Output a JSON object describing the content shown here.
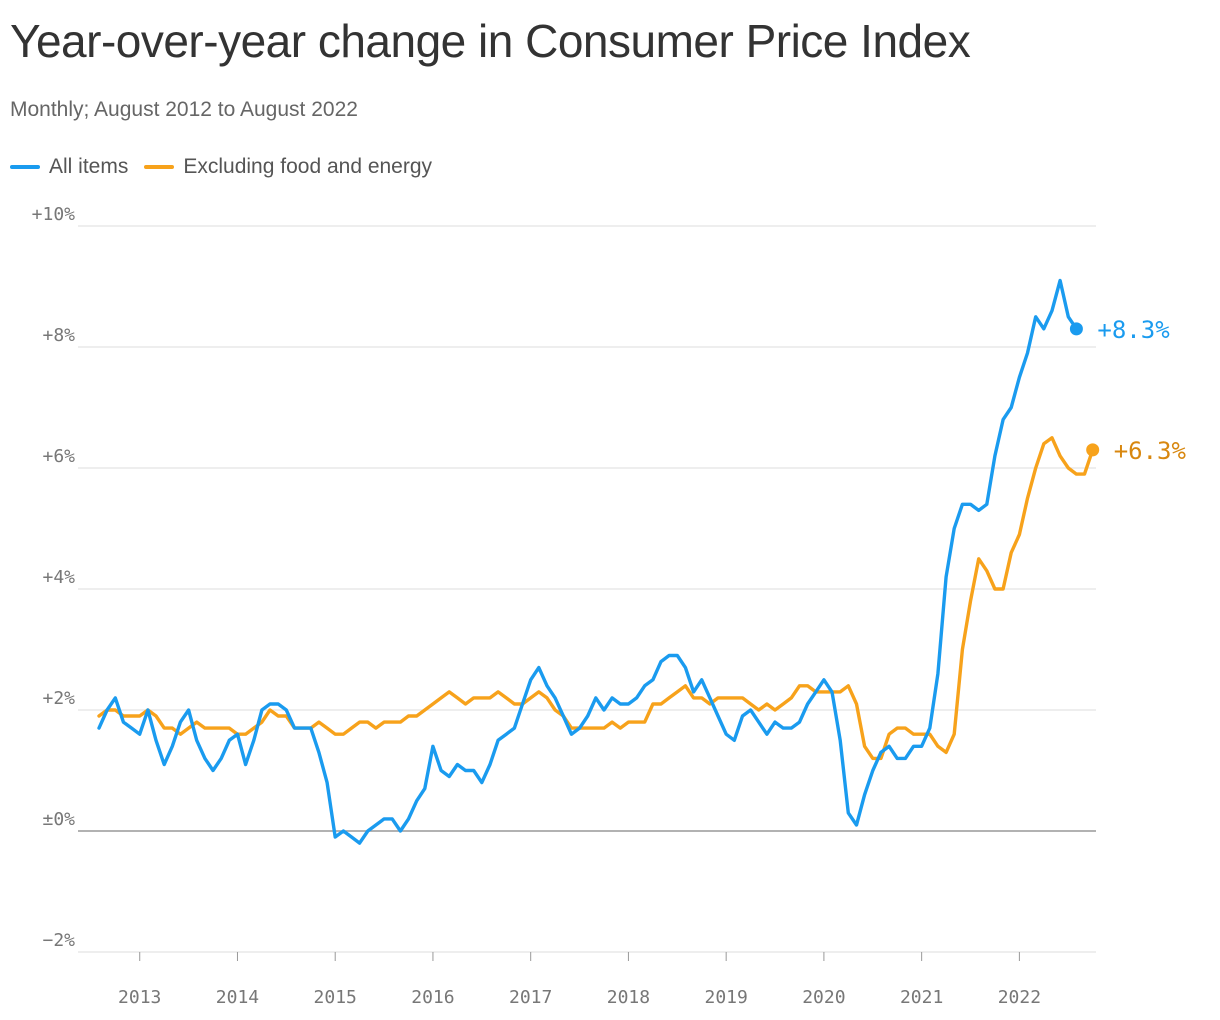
{
  "title": "Year-over-year change in Consumer Price Index",
  "subtitle": "Monthly; August 2012 to August 2022",
  "legend": [
    {
      "label": "All items",
      "color": "#1a9bef"
    },
    {
      "label": "Excluding food and energy",
      "color": "#f7a21b"
    }
  ],
  "chart_data": {
    "type": "line",
    "x_start": "2012-08",
    "x_frequency": "monthly",
    "ylim": [
      -2,
      10
    ],
    "y_ticks": [
      {
        "value": 10,
        "label": "+10%"
      },
      {
        "value": 8,
        "label": "+8%"
      },
      {
        "value": 6,
        "label": "+6%"
      },
      {
        "value": 4,
        "label": "+4%"
      },
      {
        "value": 2,
        "label": "+2%"
      },
      {
        "value": 0,
        "label": "±0%"
      },
      {
        "value": -2,
        "label": "−2%"
      }
    ],
    "x_ticks": [
      {
        "label": "2013",
        "date": "2013-01"
      },
      {
        "label": "2014",
        "date": "2014-01"
      },
      {
        "label": "2015",
        "date": "2015-01"
      },
      {
        "label": "2016",
        "date": "2016-01"
      },
      {
        "label": "2017",
        "date": "2017-01"
      },
      {
        "label": "2018",
        "date": "2018-01"
      },
      {
        "label": "2019",
        "date": "2019-01"
      },
      {
        "label": "2020",
        "date": "2020-01"
      },
      {
        "label": "2021",
        "date": "2021-01"
      },
      {
        "label": "2022",
        "date": "2022-01"
      }
    ],
    "grid": true,
    "series": [
      {
        "name": "All items",
        "color": "#1a9bef",
        "end_label": "+8.3%",
        "values": [
          1.7,
          2.0,
          2.2,
          1.8,
          1.7,
          1.6,
          2.0,
          1.5,
          1.1,
          1.4,
          1.8,
          2.0,
          1.5,
          1.2,
          1.0,
          1.2,
          1.5,
          1.6,
          1.1,
          1.5,
          2.0,
          2.1,
          2.1,
          2.0,
          1.7,
          1.7,
          1.7,
          1.3,
          0.8,
          -0.1,
          0.0,
          -0.1,
          -0.2,
          0.0,
          0.1,
          0.2,
          0.2,
          0.0,
          0.2,
          0.5,
          0.7,
          1.4,
          1.0,
          0.9,
          1.1,
          1.0,
          1.0,
          0.8,
          1.1,
          1.5,
          1.6,
          1.7,
          2.1,
          2.5,
          2.7,
          2.4,
          2.2,
          1.9,
          1.6,
          1.7,
          1.9,
          2.2,
          2.0,
          2.2,
          2.1,
          2.1,
          2.2,
          2.4,
          2.5,
          2.8,
          2.9,
          2.9,
          2.7,
          2.3,
          2.5,
          2.2,
          1.9,
          1.6,
          1.5,
          1.9,
          2.0,
          1.8,
          1.6,
          1.8,
          1.7,
          1.7,
          1.8,
          2.1,
          2.3,
          2.5,
          2.3,
          1.5,
          0.3,
          0.1,
          0.6,
          1.0,
          1.3,
          1.4,
          1.2,
          1.2,
          1.4,
          1.4,
          1.7,
          2.6,
          4.2,
          5.0,
          5.4,
          5.4,
          5.3,
          5.4,
          6.2,
          6.8,
          7.0,
          7.5,
          7.9,
          8.5,
          8.3,
          8.6,
          9.1,
          8.5,
          8.3
        ]
      },
      {
        "name": "Excluding food and energy",
        "color": "#f7a21b",
        "end_label": "+6.3%",
        "values": [
          1.9,
          2.0,
          2.0,
          1.9,
          1.9,
          1.9,
          2.0,
          1.9,
          1.7,
          1.7,
          1.6,
          1.7,
          1.8,
          1.7,
          1.7,
          1.7,
          1.7,
          1.6,
          1.6,
          1.7,
          1.8,
          2.0,
          1.9,
          1.9,
          1.7,
          1.7,
          1.7,
          1.8,
          1.7,
          1.6,
          1.6,
          1.7,
          1.8,
          1.8,
          1.7,
          1.8,
          1.8,
          1.8,
          1.9,
          1.9,
          2.0,
          2.1,
          2.2,
          2.3,
          2.2,
          2.1,
          2.2,
          2.2,
          2.2,
          2.3,
          2.2,
          2.1,
          2.1,
          2.2,
          2.3,
          2.2,
          2.0,
          1.9,
          1.7,
          1.7,
          1.7,
          1.7,
          1.7,
          1.8,
          1.7,
          1.8,
          1.8,
          1.8,
          2.1,
          2.1,
          2.2,
          2.3,
          2.4,
          2.2,
          2.2,
          2.1,
          2.2,
          2.2,
          2.2,
          2.2,
          2.1,
          2.0,
          2.1,
          2.0,
          2.1,
          2.2,
          2.4,
          2.4,
          2.3,
          2.3,
          2.3,
          2.3,
          2.4,
          2.1,
          1.4,
          1.2,
          1.2,
          1.6,
          1.7,
          1.7,
          1.6,
          1.6,
          1.6,
          1.4,
          1.3,
          1.6,
          3.0,
          3.8,
          4.5,
          4.3,
          4.0,
          4.0,
          4.6,
          4.9,
          5.5,
          6.0,
          6.4,
          6.5,
          6.2,
          6.0,
          5.9,
          5.9,
          6.3
        ]
      }
    ]
  }
}
